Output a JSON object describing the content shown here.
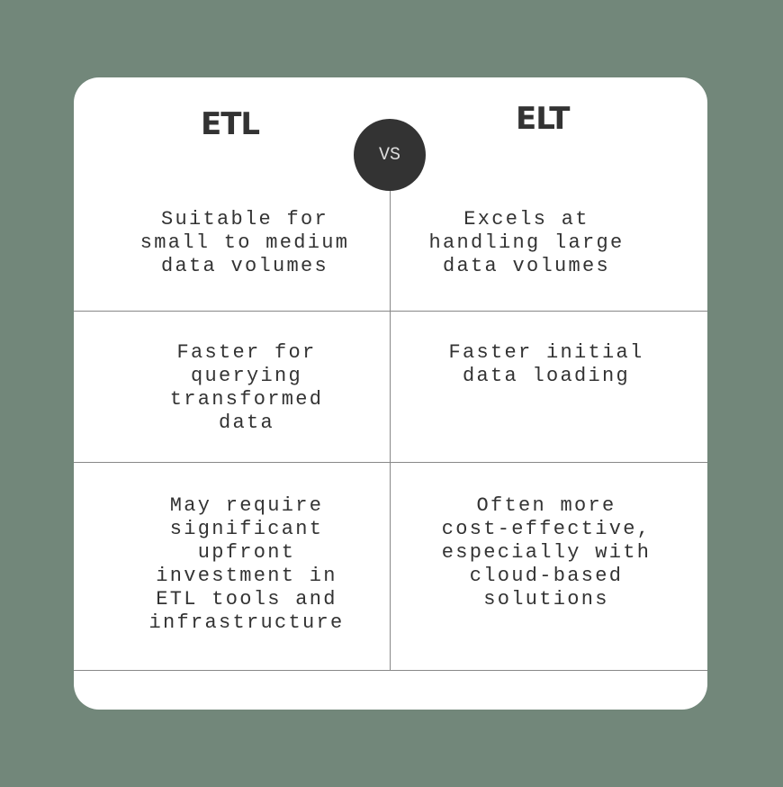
{
  "header": {
    "left_title": "ETL",
    "right_title": "ELT",
    "vs_label": "VS"
  },
  "rows": [
    {
      "etl": "Suitable for\nsmall to medium\ndata volumes",
      "elt": "Excels at\nhandling large\ndata volumes"
    },
    {
      "etl": "Faster for\nquerying\ntransformed\ndata",
      "elt": "Faster initial\ndata loading"
    },
    {
      "etl": "May require\nsignificant\nupfront\ninvestment in\nETL tools and\ninfrastructure",
      "elt": "Often more\ncost-effective,\nespecially with\ncloud-based\nsolutions"
    }
  ],
  "colors": {
    "background": "#72877a",
    "card": "#ffffff",
    "text": "#333333",
    "badge": "#333333"
  }
}
